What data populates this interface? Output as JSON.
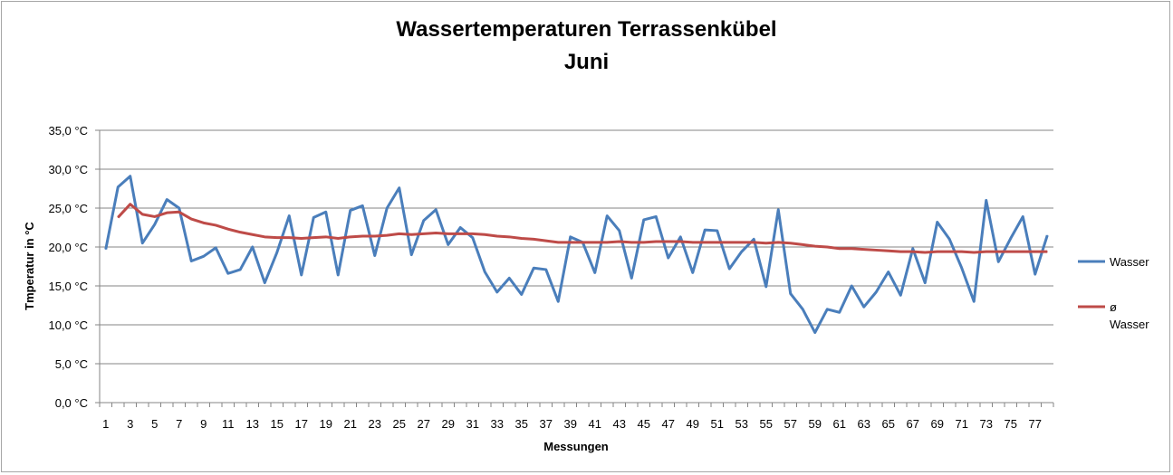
{
  "chart_data": {
    "type": "line",
    "title_lines": [
      "Wassertemperaturen Terrassenkübel",
      "Juni"
    ],
    "xlabel": "Messungen",
    "ylabel": "Tmperatur in °C",
    "ylim": [
      0,
      35
    ],
    "y_ticks": [
      0,
      5,
      10,
      15,
      20,
      25,
      30,
      35
    ],
    "y_tick_labels": [
      "0,0 °C",
      "5,0 °C",
      "10,0 °C",
      "15,0 °C",
      "20,0 °C",
      "25,0 °C",
      "30,0 °C",
      "35,0 °C"
    ],
    "x": [
      1,
      2,
      3,
      4,
      5,
      6,
      7,
      8,
      9,
      10,
      11,
      12,
      13,
      14,
      15,
      16,
      17,
      18,
      19,
      20,
      21,
      22,
      23,
      24,
      25,
      26,
      27,
      28,
      29,
      30,
      31,
      32,
      33,
      34,
      35,
      36,
      37,
      38,
      39,
      40,
      41,
      42,
      43,
      44,
      45,
      46,
      47,
      48,
      49,
      50,
      51,
      52,
      53,
      54,
      55,
      56,
      57,
      58,
      59,
      60,
      61,
      62,
      63,
      64,
      65,
      66,
      67,
      68,
      69,
      70,
      71,
      72,
      73,
      74,
      75,
      76,
      77,
      78
    ],
    "x_tick_labels_shown": [
      1,
      3,
      5,
      7,
      9,
      11,
      13,
      15,
      17,
      19,
      21,
      23,
      25,
      27,
      29,
      31,
      33,
      35,
      37,
      39,
      41,
      43,
      45,
      47,
      49,
      51,
      53,
      55,
      57,
      59,
      61,
      63,
      65,
      67,
      69,
      71,
      73,
      75,
      77
    ],
    "grid": true,
    "legend_position": "right",
    "series": [
      {
        "name": "Wasser",
        "color": "#4a7ebb",
        "values": [
          19.7,
          27.7,
          29.1,
          20.5,
          22.9,
          26.1,
          25.0,
          18.2,
          18.8,
          19.9,
          16.6,
          17.1,
          20.0,
          15.4,
          19.3,
          24.0,
          16.4,
          23.8,
          24.5,
          16.4,
          24.7,
          25.3,
          18.9,
          25.0,
          27.6,
          19.0,
          23.4,
          24.8,
          20.3,
          22.5,
          21.2,
          16.8,
          14.2,
          16.0,
          13.9,
          17.3,
          17.1,
          13.0,
          21.3,
          20.6,
          16.7,
          24.0,
          22.1,
          16.0,
          23.5,
          23.9,
          18.6,
          21.3,
          16.7,
          22.2,
          22.1,
          17.2,
          19.4,
          21.0,
          14.9,
          24.8,
          14.0,
          12.0,
          9.0,
          12.0,
          11.6,
          15.0,
          12.3,
          14.2,
          16.8,
          13.8,
          19.8,
          15.4,
          23.2,
          21.0,
          17.3,
          13.0,
          26.0,
          18.1,
          21.1,
          23.9,
          16.5,
          21.5
        ]
      },
      {
        "name": "ø\nWasser",
        "color": "#be4b48",
        "values": [
          null,
          23.8,
          25.5,
          24.2,
          23.9,
          24.4,
          24.5,
          23.6,
          23.1,
          22.8,
          22.3,
          21.9,
          21.6,
          21.3,
          21.2,
          21.2,
          21.1,
          21.2,
          21.3,
          21.1,
          21.3,
          21.4,
          21.4,
          21.5,
          21.7,
          21.6,
          21.7,
          21.8,
          21.7,
          21.7,
          21.7,
          21.6,
          21.4,
          21.3,
          21.1,
          21.0,
          20.8,
          20.6,
          20.6,
          20.6,
          20.6,
          20.6,
          20.7,
          20.6,
          20.6,
          20.7,
          20.7,
          20.7,
          20.6,
          20.6,
          20.6,
          20.6,
          20.6,
          20.6,
          20.5,
          20.6,
          20.5,
          20.3,
          20.1,
          20.0,
          19.8,
          19.8,
          19.7,
          19.6,
          19.5,
          19.4,
          19.4,
          19.3,
          19.4,
          19.4,
          19.4,
          19.3,
          19.4,
          19.4,
          19.4,
          19.4,
          19.4,
          19.4
        ]
      }
    ]
  }
}
